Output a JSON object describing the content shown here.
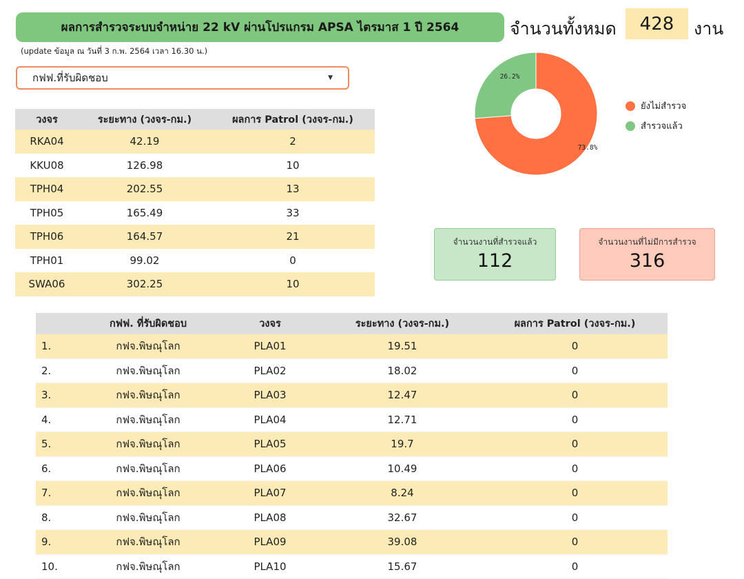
{
  "header": {
    "title": "ผลการสำรวจระบบจำหน่าย 22 kV ผ่านโปรแกรม APSA ไตรมาส 1 ปี 2564",
    "total_label": "จำนวนทั้งหมด",
    "total_value": "428",
    "total_unit": "งาน",
    "update_note": "(update ข้อมูล ณ วันที่ 3 ก.พ. 2564 เวลา 16.30 น.)"
  },
  "filter": {
    "selected": "กฟฟ.ที่รับผิดชอบ"
  },
  "summary_table": {
    "headers": [
      "วงจร",
      "ระยะทาง (วงจร-กม.)",
      "ผลการ Patrol (วงจร-กม.)"
    ],
    "rows": [
      [
        "RKA04",
        "42.19",
        "2"
      ],
      [
        "KKU08",
        "126.98",
        "10"
      ],
      [
        "TPH04",
        "202.55",
        "13"
      ],
      [
        "TPH05",
        "165.49",
        "33"
      ],
      [
        "TPH06",
        "164.57",
        "21"
      ],
      [
        "TPH01",
        "99.02",
        "0"
      ],
      [
        "SWA06",
        "302.25",
        "10"
      ]
    ]
  },
  "chart_data": {
    "type": "pie",
    "categories": [
      "ยังไม่สำรวจ",
      "สำรวจแล้ว"
    ],
    "values": [
      73.8,
      26.2
    ],
    "labels": [
      "73.8%",
      "26.2%"
    ],
    "colors": [
      "#ff7043",
      "#81c784"
    ],
    "legend": "right"
  },
  "cards": {
    "surveyed": {
      "label": "จำนวนงานที่สำรวจแล้ว",
      "value": "112",
      "color": "#c8e6c8"
    },
    "not_surveyed": {
      "label": "จำนวนงานที่ไม่มีการสำรวจ",
      "value": "316",
      "color": "#ffcbbd"
    }
  },
  "detail_table": {
    "headers": [
      "",
      "กฟฟ. ที่รับผิดชอบ",
      "วงจร",
      "ระยะทาง (วงจร-กม.)",
      "ผลการ Patrol (วงจร-กม.)"
    ],
    "rows": [
      [
        "1.",
        "กฟจ.พิษณุโลก",
        "PLA01",
        "19.51",
        "0"
      ],
      [
        "2.",
        "กฟจ.พิษณุโลก",
        "PLA02",
        "18.02",
        "0"
      ],
      [
        "3.",
        "กฟจ.พิษณุโลก",
        "PLA03",
        "12.47",
        "0"
      ],
      [
        "4.",
        "กฟจ.พิษณุโลก",
        "PLA04",
        "12.71",
        "0"
      ],
      [
        "5.",
        "กฟจ.พิษณุโลก",
        "PLA05",
        "19.7",
        "0"
      ],
      [
        "6.",
        "กฟจ.พิษณุโลก",
        "PLA06",
        "10.49",
        "0"
      ],
      [
        "7.",
        "กฟจ.พิษณุโลก",
        "PLA07",
        "8.24",
        "0"
      ],
      [
        "8.",
        "กฟจ.พิษณุโลก",
        "PLA08",
        "32.67",
        "0"
      ],
      [
        "9.",
        "กฟจ.พิษณุโลก",
        "PLA09",
        "39.08",
        "0"
      ],
      [
        "10.",
        "กฟจ.พิษณุโลก",
        "PLA10",
        "15.67",
        "0"
      ]
    ]
  }
}
